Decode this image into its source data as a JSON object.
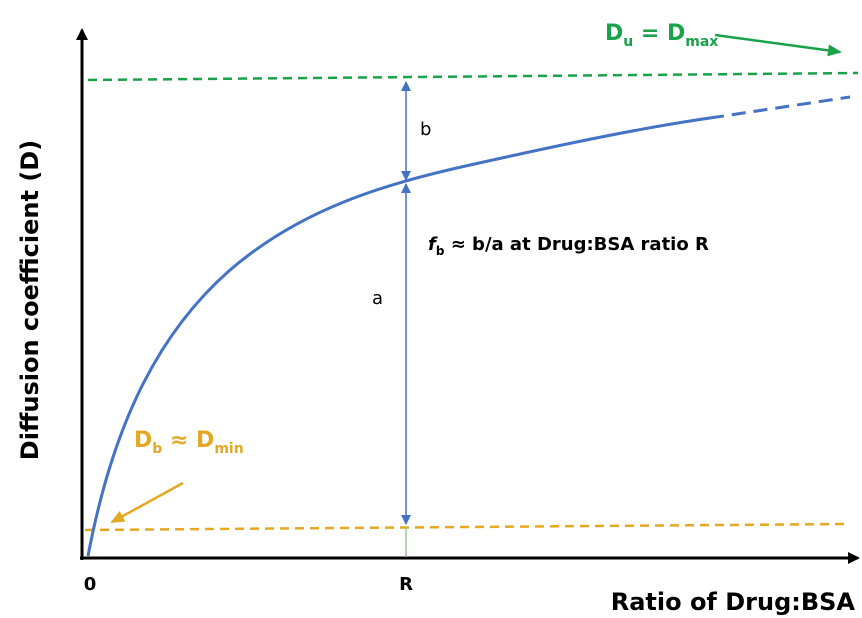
{
  "axes": {
    "y_label": "Diffusion coefficient (D)",
    "x_label": "Ratio of Drug:BSA",
    "x_ticks": [
      "0",
      "R"
    ]
  },
  "upper_label": {
    "parts": [
      "D",
      "u",
      " = D",
      "max"
    ]
  },
  "lower_label": {
    "parts": [
      "D",
      "b",
      " ≈ D",
      "min"
    ]
  },
  "gap_labels": {
    "b": "b",
    "a": "a"
  },
  "fraction_label": {
    "parts": [
      "f",
      "b",
      " ≈ b/a at Drug:BSA ratio R"
    ]
  }
}
